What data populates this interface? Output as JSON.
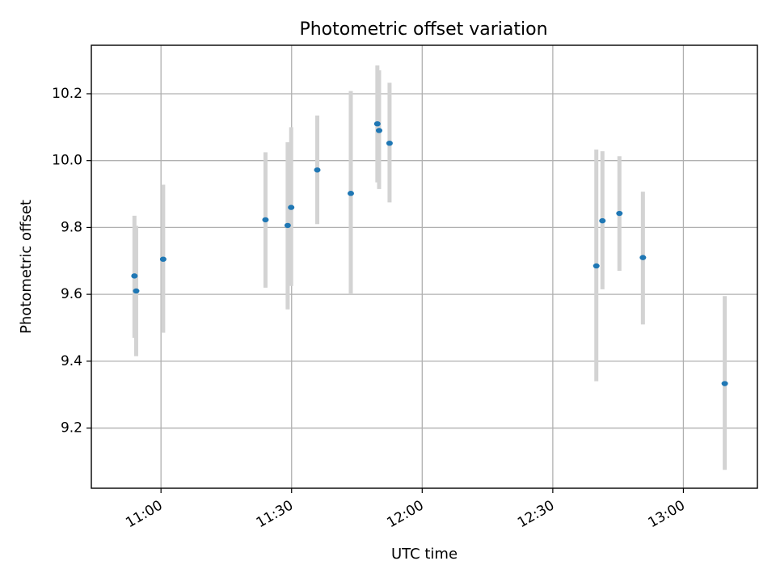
{
  "chart_data": {
    "type": "scatter",
    "title": "Photometric offset variation",
    "xlabel": "UTC time",
    "ylabel": "Photometric offset",
    "grid": true,
    "x_unit": "minutes since 00:00 UTC",
    "xlim": [
      644,
      797
    ],
    "ylim": [
      9.02,
      10.345
    ],
    "x_ticks": [
      {
        "value": 660,
        "label": "11:00"
      },
      {
        "value": 690,
        "label": "11:30"
      },
      {
        "value": 720,
        "label": "12:00"
      },
      {
        "value": 750,
        "label": "12:30"
      },
      {
        "value": 780,
        "label": "13:00"
      }
    ],
    "y_ticks": [
      {
        "value": 9.2,
        "label": "9.2"
      },
      {
        "value": 9.4,
        "label": "9.4"
      },
      {
        "value": 9.6,
        "label": "9.6"
      },
      {
        "value": 9.8,
        "label": "9.8"
      },
      {
        "value": 10.0,
        "label": "10.0"
      },
      {
        "value": 10.2,
        "label": "10.2"
      }
    ],
    "colors": {
      "point": "#1f77b4",
      "errorbar": "#d3d3d3",
      "grid": "#b0b0b0"
    },
    "points": [
      {
        "x": 653.9,
        "y": 9.655,
        "err_low": 9.47,
        "err_high": 9.835
      },
      {
        "x": 654.3,
        "y": 9.61,
        "err_low": 9.415,
        "err_high": 9.805
      },
      {
        "x": 660.5,
        "y": 9.705,
        "err_low": 9.485,
        "err_high": 9.928
      },
      {
        "x": 684.0,
        "y": 9.823,
        "err_low": 9.62,
        "err_high": 10.025
      },
      {
        "x": 689.1,
        "y": 9.806,
        "err_low": 9.555,
        "err_high": 10.055
      },
      {
        "x": 689.9,
        "y": 9.86,
        "err_low": 9.625,
        "err_high": 10.1
      },
      {
        "x": 695.9,
        "y": 9.972,
        "err_low": 9.81,
        "err_high": 10.135
      },
      {
        "x": 703.6,
        "y": 9.902,
        "err_low": 9.6,
        "err_high": 10.208
      },
      {
        "x": 709.7,
        "y": 10.11,
        "err_low": 9.935,
        "err_high": 10.285
      },
      {
        "x": 710.1,
        "y": 10.09,
        "err_low": 9.915,
        "err_high": 10.27
      },
      {
        "x": 712.5,
        "y": 10.052,
        "err_low": 9.875,
        "err_high": 10.233
      },
      {
        "x": 760.0,
        "y": 9.685,
        "err_low": 9.34,
        "err_high": 10.033
      },
      {
        "x": 761.4,
        "y": 9.82,
        "err_low": 9.615,
        "err_high": 10.028
      },
      {
        "x": 765.3,
        "y": 9.842,
        "err_low": 9.67,
        "err_high": 10.013
      },
      {
        "x": 770.7,
        "y": 9.71,
        "err_low": 9.51,
        "err_high": 9.907
      },
      {
        "x": 789.5,
        "y": 9.333,
        "err_low": 9.075,
        "err_high": 9.595
      }
    ]
  }
}
